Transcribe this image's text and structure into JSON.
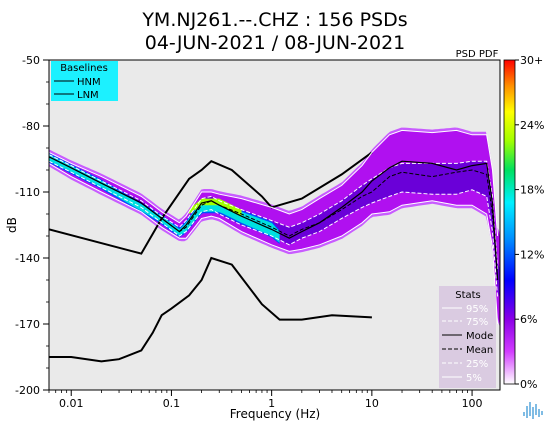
{
  "chart_data": {
    "type": "heatmap",
    "title_line1": "YM.NJ261.--.CHZ : 156 PSDs",
    "title_line2": "04-JUN-2021 / 08-JUN-2021",
    "xlabel": "Frequency (Hz)",
    "ylabel": "dB",
    "x_scale": "log",
    "xlim": [
      0.006,
      190
    ],
    "ylim": [
      -200,
      -50
    ],
    "x_ticks": [
      0.01,
      0.1,
      1,
      10,
      100
    ],
    "x_tick_labels": [
      "0.01",
      "0.1",
      "1",
      "10",
      "100"
    ],
    "y_ticks": [
      -50,
      -80,
      -110,
      -140,
      -170,
      -200
    ],
    "y_tick_labels": [
      "-50",
      "-80",
      "-110",
      "-140",
      "-170",
      "-200"
    ],
    "colorbar": {
      "label": "PSD PDF",
      "ticks": [
        30,
        24,
        18,
        12,
        6,
        0
      ],
      "tick_labels": [
        "30+",
        "24%",
        "18%",
        "12%",
        "6%",
        "0%"
      ]
    },
    "baselines": {
      "title": "Baselines",
      "legend_bg": "#1cf1ff",
      "items": [
        "HNM",
        "LNM"
      ],
      "HNM": {
        "x": [
          0.006,
          0.05,
          0.08,
          0.15,
          0.2,
          0.25,
          0.4,
          0.8,
          1,
          2,
          5,
          10
        ],
        "y": [
          -127,
          -138,
          -122,
          -104,
          -100,
          -96,
          -100,
          -112,
          -117,
          -113,
          -102,
          -92
        ]
      },
      "LNM": {
        "x": [
          0.006,
          0.01,
          0.02,
          0.03,
          0.05,
          0.065,
          0.08,
          0.1,
          0.15,
          0.2,
          0.25,
          0.4,
          0.8,
          1.2,
          2,
          4,
          10
        ],
        "y": [
          -185,
          -185,
          -187,
          -186,
          -182,
          -174,
          -166,
          -163,
          -157,
          -150,
          -140,
          -143,
          -161,
          -168,
          -168,
          -166,
          -167
        ]
      }
    },
    "stats": {
      "title": "Stats",
      "items": [
        "95%",
        "75%",
        "Mode",
        "Mean",
        "25%",
        "5%"
      ],
      "x": [
        0.006,
        0.01,
        0.02,
        0.05,
        0.08,
        0.12,
        0.14,
        0.2,
        0.25,
        0.3,
        0.5,
        1,
        1.5,
        2,
        3,
        5,
        8,
        10,
        15,
        20,
        40,
        70,
        100,
        140,
        160,
        180
      ],
      "Mean": [
        -94,
        -99,
        -106,
        -115,
        -122,
        -128,
        -126,
        -116,
        -114,
        -116,
        -120,
        -126,
        -130,
        -127,
        -124,
        -118,
        -112,
        -110,
        -103,
        -101,
        -103,
        -101,
        -100,
        -102,
        -120,
        -150
      ],
      "Mode": [
        -94,
        -99,
        -106,
        -115,
        -122,
        -128,
        -125,
        -115,
        -114,
        -116,
        -121,
        -127,
        -131,
        -128,
        -124,
        -117,
        -110,
        -105,
        -99,
        -96,
        -97,
        -100,
        -98,
        -97,
        -115,
        -150
      ],
      "p95": [
        -92,
        -97,
        -103,
        -112,
        -119,
        -124,
        -121,
        -110,
        -110,
        -111,
        -113,
        -117,
        -120,
        -118,
        -113,
        -107,
        -98,
        -92,
        -84,
        -82,
        -83,
        -82,
        -84,
        -84,
        -100,
        -130
      ],
      "p75": [
        -93,
        -98,
        -105,
        -114,
        -121,
        -126,
        -123,
        -113,
        -112,
        -114,
        -118,
        -123,
        -126,
        -124,
        -120,
        -114,
        -107,
        -104,
        -99,
        -97,
        -97,
        -97,
        -96,
        -96,
        -112,
        -145
      ],
      "p25": [
        -96,
        -101,
        -108,
        -117,
        -124,
        -130,
        -128,
        -119,
        -118,
        -120,
        -125,
        -130,
        -134,
        -131,
        -128,
        -122,
        -117,
        -115,
        -112,
        -110,
        -111,
        -111,
        -109,
        -112,
        -128,
        -158
      ],
      "p5": [
        -97,
        -103,
        -110,
        -119,
        -126,
        -131,
        -131,
        -122,
        -121,
        -122,
        -128,
        -134,
        -137,
        -136,
        -134,
        -130,
        -124,
        -120,
        -119,
        -116,
        -114,
        -116,
        -116,
        -120,
        -135,
        -170
      ]
    }
  }
}
